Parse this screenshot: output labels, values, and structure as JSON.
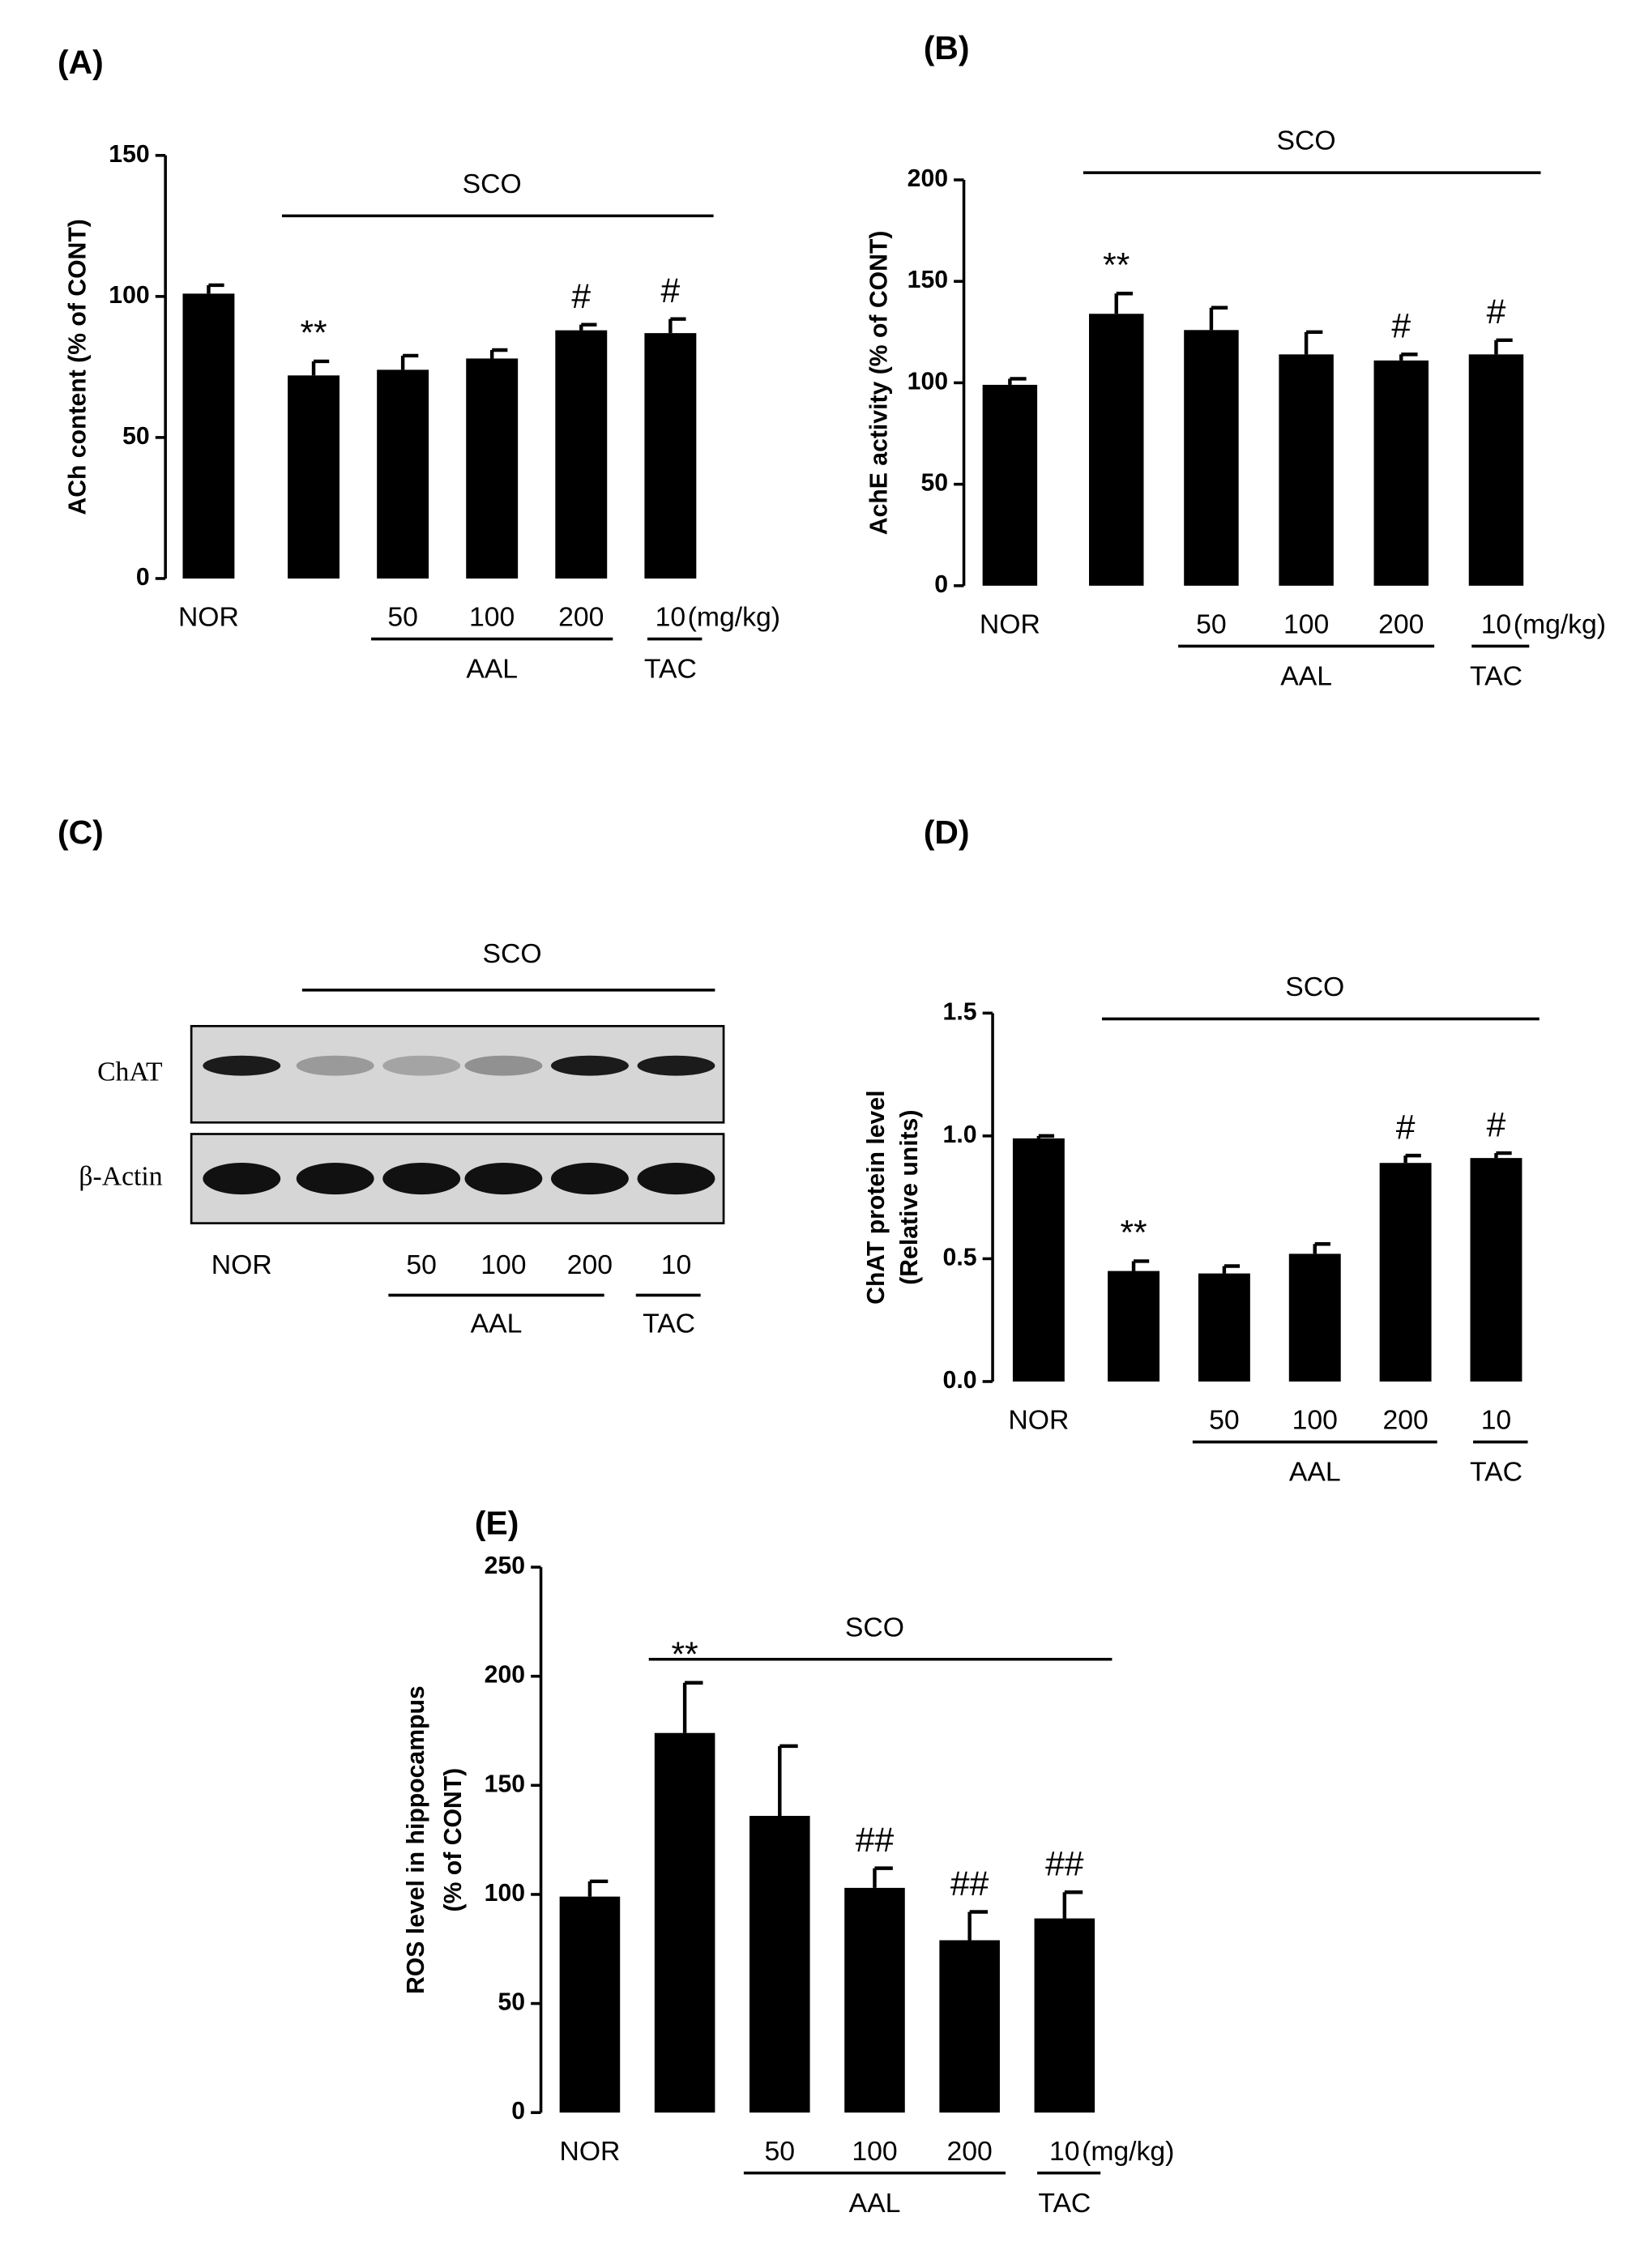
{
  "chart_data": [
    {
      "type": "bar",
      "panel": "(A)",
      "ylabel": [
        "ACh content (% of CONT)"
      ],
      "categories": [
        "NOR",
        null,
        "50",
        "100",
        "200",
        "10"
      ],
      "unit": "(mg/kg)",
      "group_labels": [
        "SCO",
        "AAL",
        "TAC"
      ],
      "values": [
        101,
        72,
        74,
        78,
        88,
        87
      ],
      "errors": [
        3,
        5,
        5,
        3,
        2,
        5
      ],
      "annotations": [
        null,
        "**",
        null,
        null,
        "#",
        "#"
      ],
      "color": "#000000",
      "ylim": [
        0,
        150
      ],
      "yticks": [
        0,
        50,
        100,
        150
      ]
    },
    {
      "type": "bar",
      "panel": "(B)",
      "ylabel": [
        "AchE activity (% of CONT)"
      ],
      "categories": [
        "NOR",
        null,
        "50",
        "100",
        "200",
        "10"
      ],
      "unit": "(mg/kg)",
      "group_labels": [
        "SCO",
        "AAL",
        "TAC"
      ],
      "values": [
        99,
        134,
        126,
        114,
        111,
        114
      ],
      "errors": [
        3,
        10,
        11,
        11,
        3,
        7
      ],
      "annotations": [
        null,
        "**",
        null,
        null,
        "#",
        "#"
      ],
      "color": "#000000",
      "ylim": [
        0,
        200
      ],
      "yticks": [
        0,
        50,
        100,
        150,
        200
      ]
    },
    {
      "type": "bar",
      "panel": "(D)",
      "ylabel": [
        "ChAT protein level",
        "(Relative units)"
      ],
      "categories": [
        "NOR",
        null,
        "50",
        "100",
        "200",
        "10"
      ],
      "group_labels": [
        "SCO",
        "AAL",
        "TAC"
      ],
      "values": [
        0.99,
        0.45,
        0.44,
        0.52,
        0.89,
        0.91
      ],
      "errors": [
        0.01,
        0.04,
        0.03,
        0.04,
        0.03,
        0.02
      ],
      "annotations": [
        null,
        "**",
        null,
        null,
        "#",
        "#"
      ],
      "color": "#000000",
      "ylim": [
        0,
        1.5
      ],
      "yticks": [
        {
          "value": 0,
          "label": "0.0"
        },
        0.5,
        {
          "value": 1,
          "label": "1.0"
        },
        1.5
      ]
    },
    {
      "type": "bar",
      "panel": "(E)",
      "ylabel": [
        "ROS level in hippocampus",
        "(% of CONT)"
      ],
      "categories": [
        "NOR",
        null,
        "50",
        "100",
        "200",
        "10"
      ],
      "unit": "(mg/kg)",
      "group_labels": [
        "SCO",
        "AAL",
        "TAC"
      ],
      "values": [
        99,
        174,
        136,
        103,
        79,
        89
      ],
      "errors": [
        7,
        23,
        32,
        9,
        13,
        12
      ],
      "annotations": [
        null,
        "**",
        null,
        "##",
        "##",
        "##"
      ],
      "color": "#000000",
      "ylim": [
        0,
        250
      ],
      "yticks": [
        0,
        50,
        100,
        150,
        200,
        250
      ]
    }
  ],
  "blot": {
    "panel": "(C)",
    "rows": [
      "ChAT",
      "β-Actin"
    ],
    "lanes": [
      "NOR",
      null,
      "50",
      "100",
      "200",
      "10"
    ],
    "group_labels": [
      "SCO",
      "AAL",
      "TAC"
    ]
  }
}
